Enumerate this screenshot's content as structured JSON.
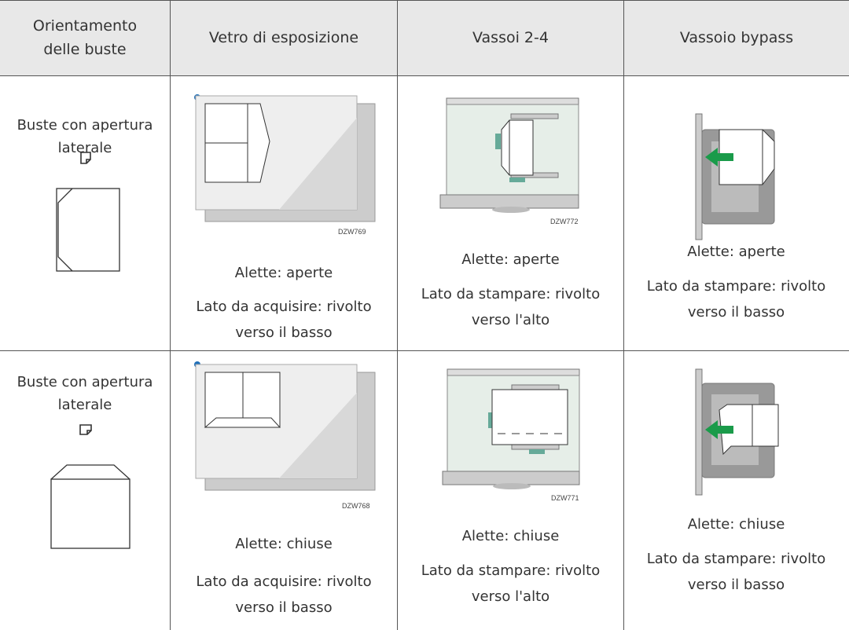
{
  "table": {
    "headers": [
      "Orientamento delle buste",
      "Vetro di esposizione",
      "Vassoi 2-4",
      "Vassoio bypass"
    ],
    "rows": [
      {
        "orientation": "Buste con apertura laterale",
        "glass": {
          "code": "DZW769",
          "flaps": "Alette: aperte",
          "side": "Lato da acquisire: rivolto verso il basso"
        },
        "trays": {
          "code": "DZW772",
          "flaps": "Alette: aperte",
          "side": "Lato da stampare: rivolto verso l'alto"
        },
        "bypass": {
          "flaps": "Alette: aperte",
          "side": "Lato da stampare: rivolto verso il basso"
        }
      },
      {
        "orientation": "Buste con apertura laterale",
        "glass": {
          "code": "DZW768",
          "flaps": "Alette: chiuse",
          "side": "Lato da acquisire: rivolto verso il basso"
        },
        "trays": {
          "code": "DZW771",
          "flaps": "Alette: chiuse",
          "side": "Lato da stampare: rivolto verso l'alto"
        },
        "bypass": {
          "flaps": "Alette: chiuse",
          "side": "Lato da stampare: rivolto verso il basso"
        }
      }
    ]
  }
}
